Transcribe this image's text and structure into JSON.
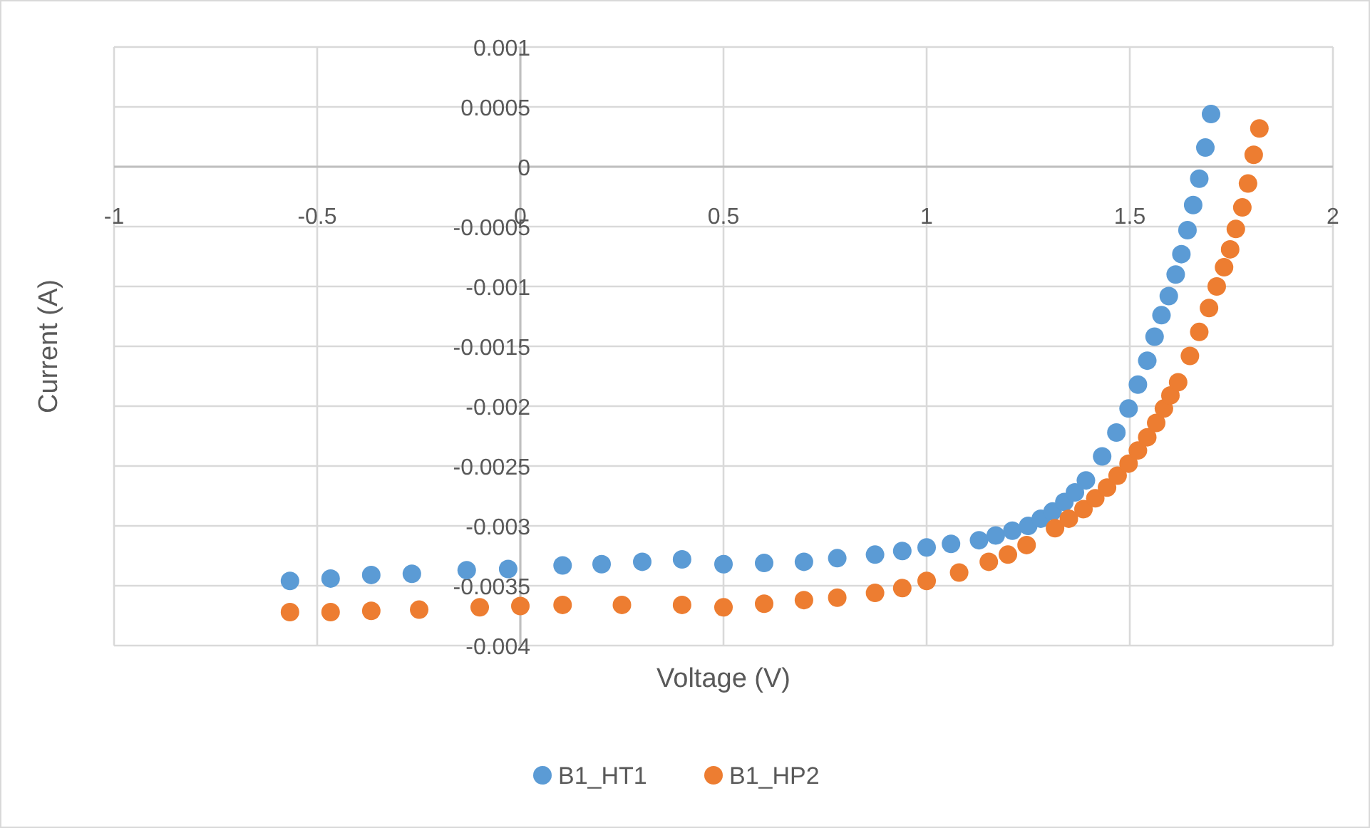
{
  "chart_data": {
    "type": "scatter",
    "xlabel": "Voltage (V)",
    "ylabel": "Current (A)",
    "xlim": [
      -1,
      2
    ],
    "ylim": [
      -0.004,
      0.001
    ],
    "xticks": [
      -1,
      -0.5,
      0,
      0.5,
      1,
      1.5,
      2
    ],
    "yticks": [
      -0.004,
      -0.0035,
      -0.003,
      -0.0025,
      -0.002,
      -0.0015,
      -0.001,
      -0.0005,
      0,
      0.0005,
      0.001
    ],
    "grid": true,
    "legend": "bottom",
    "marker": "circle",
    "series": [
      {
        "name": "B1_HT1",
        "color": "#5b9bd5",
        "x": [
          -0.567,
          -0.467,
          -0.367,
          -0.267,
          -0.132,
          -0.03,
          0.104,
          0.2,
          0.3,
          0.398,
          0.5,
          0.6,
          0.698,
          0.78,
          0.873,
          0.94,
          1.0,
          1.06,
          1.129,
          1.17,
          1.211,
          1.25,
          1.281,
          1.31,
          1.339,
          1.365,
          1.392,
          1.432,
          1.467,
          1.497,
          1.52,
          1.543,
          1.561,
          1.578,
          1.596,
          1.613,
          1.627,
          1.642,
          1.656,
          1.671,
          1.686,
          1.7
        ],
        "values": [
          -0.00346,
          -0.00344,
          -0.00341,
          -0.0034,
          -0.00337,
          -0.00336,
          -0.00333,
          -0.00332,
          -0.0033,
          -0.00328,
          -0.00332,
          -0.00331,
          -0.0033,
          -0.00327,
          -0.00324,
          -0.00321,
          -0.00318,
          -0.00315,
          -0.00312,
          -0.00308,
          -0.00304,
          -0.003,
          -0.00294,
          -0.00288,
          -0.0028,
          -0.00272,
          -0.00262,
          -0.00242,
          -0.00222,
          -0.00202,
          -0.00182,
          -0.00162,
          -0.00142,
          -0.00124,
          -0.00108,
          -0.0009,
          -0.00073,
          -0.00053,
          -0.00032,
          -0.0001,
          0.00016,
          0.00044
        ]
      },
      {
        "name": "B1_HP2",
        "color": "#ed7d31",
        "x": [
          -0.567,
          -0.467,
          -0.367,
          -0.249,
          -0.1,
          0.0,
          0.104,
          0.25,
          0.398,
          0.5,
          0.6,
          0.698,
          0.78,
          0.873,
          0.94,
          1.0,
          1.08,
          1.153,
          1.2,
          1.246,
          1.316,
          1.35,
          1.386,
          1.415,
          1.444,
          1.47,
          1.497,
          1.52,
          1.543,
          1.565,
          1.584,
          1.6,
          1.619,
          1.648,
          1.671,
          1.695,
          1.714,
          1.732,
          1.747,
          1.761,
          1.777,
          1.791,
          1.805,
          1.819
        ],
        "values": [
          -0.00372,
          -0.00372,
          -0.00371,
          -0.0037,
          -0.00368,
          -0.00367,
          -0.00366,
          -0.00366,
          -0.00366,
          -0.00368,
          -0.00365,
          -0.00362,
          -0.0036,
          -0.00356,
          -0.00352,
          -0.00346,
          -0.00339,
          -0.0033,
          -0.00324,
          -0.00316,
          -0.00302,
          -0.00294,
          -0.00286,
          -0.00277,
          -0.00268,
          -0.00258,
          -0.00248,
          -0.00237,
          -0.00226,
          -0.00214,
          -0.00202,
          -0.00191,
          -0.0018,
          -0.00158,
          -0.00138,
          -0.00118,
          -0.001,
          -0.00084,
          -0.00069,
          -0.00052,
          -0.00034,
          -0.00014,
          0.0001,
          0.00032
        ]
      }
    ]
  }
}
